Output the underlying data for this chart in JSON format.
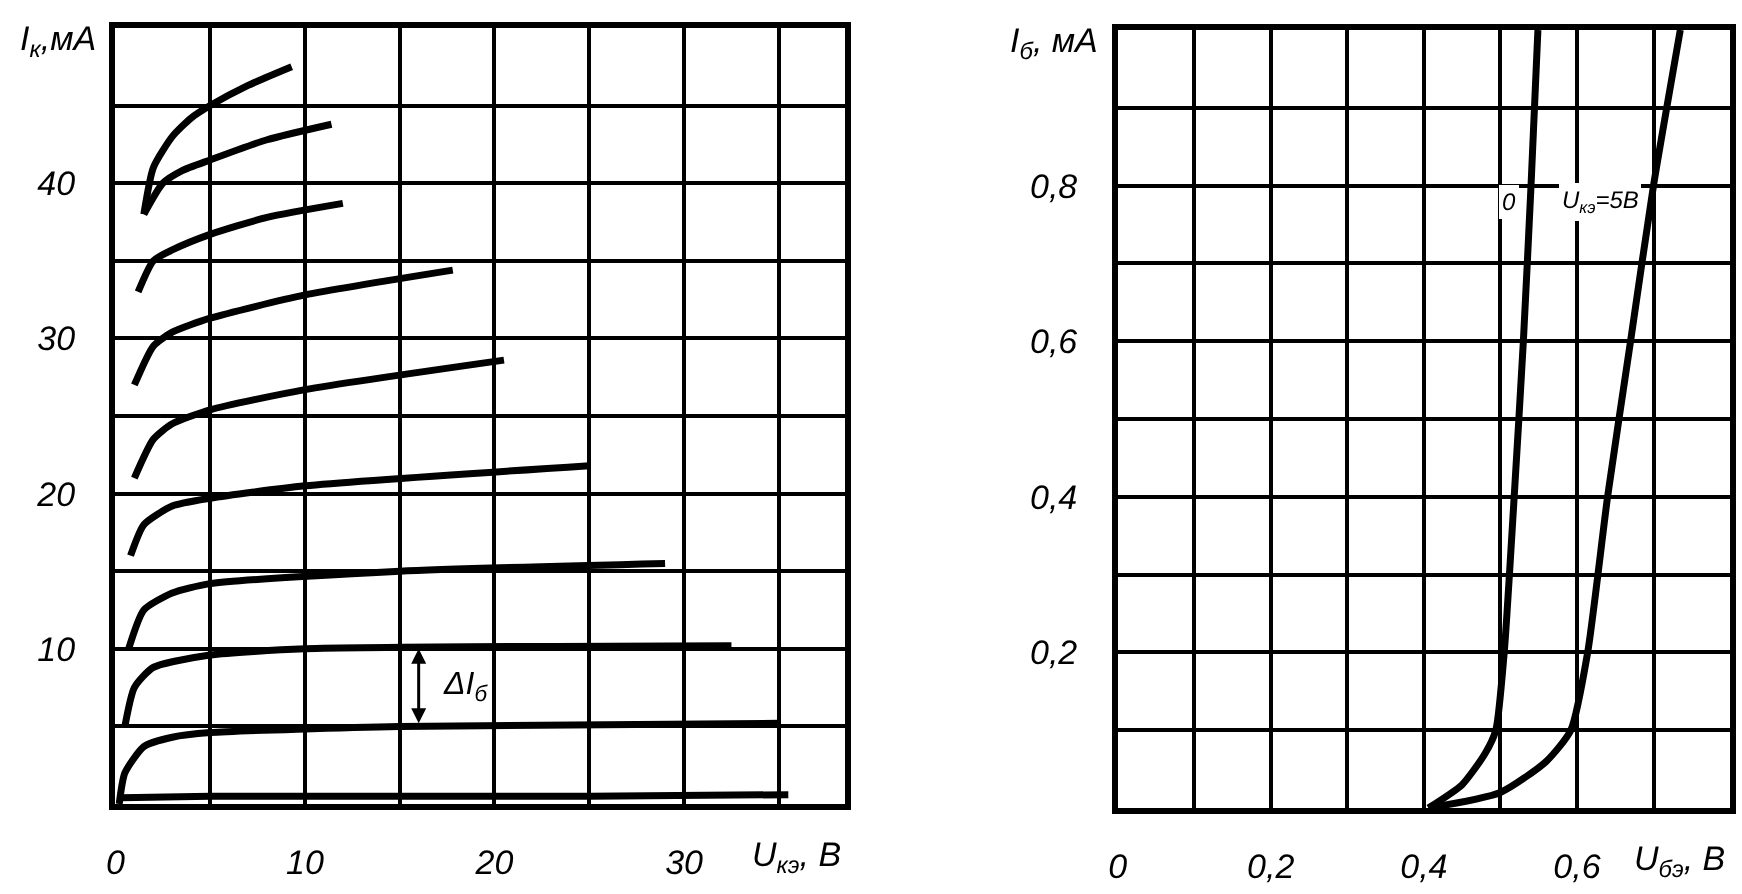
{
  "chart_data": [
    {
      "type": "line",
      "xlabel": "U$_{кэ}$, В",
      "ylabel": "I$_{к}$,мА",
      "xlim": [
        0,
        38.5
      ],
      "ylim": [
        0,
        50
      ],
      "xticks": [
        0,
        {
          "value": 5,
          "label": null
        },
        10,
        {
          "value": 15,
          "label": null
        },
        20,
        {
          "value": 25,
          "label": null
        },
        30,
        {
          "value": 35,
          "label": null
        }
      ],
      "yticks": [
        {
          "value": 0,
          "label": null
        },
        {
          "value": 5,
          "label": null
        },
        10,
        {
          "value": 15,
          "label": null
        },
        20,
        {
          "value": 25,
          "label": null
        },
        30,
        {
          "value": 35,
          "label": null
        },
        40,
        {
          "value": 45,
          "label": null
        },
        {
          "value": 50,
          "label": null
        }
      ],
      "grid": true,
      "marker": "none",
      "line_style": "solid",
      "series": [
        {
          "color": "#000000",
          "x": [
            0.3,
            5,
            15,
            25,
            35.5
          ],
          "values": [
            0.4,
            0.5,
            0.5,
            0.5,
            0.6
          ]
        },
        {
          "color": "#000000",
          "x": [
            0.2,
            0.5,
            1.5,
            3,
            5,
            15,
            35
          ],
          "values": [
            0,
            2,
            3.7,
            4.3,
            4.6,
            5,
            5.2
          ]
        },
        {
          "color": "#000000",
          "x": [
            0.5,
            1,
            2,
            5,
            10,
            32.5
          ],
          "values": [
            5,
            7.5,
            8.8,
            9.6,
            10,
            10.2
          ]
        },
        {
          "color": "#000000",
          "x": [
            0.7,
            1.5,
            3,
            5,
            15,
            29
          ],
          "values": [
            10,
            12.5,
            13.6,
            14.2,
            15,
            15.5
          ]
        },
        {
          "color": "#000000",
          "x": [
            0.8,
            1.5,
            3,
            5,
            10,
            25
          ],
          "values": [
            16,
            18,
            19.2,
            19.7,
            20.5,
            21.8
          ]
        },
        {
          "color": "#000000",
          "x": [
            1,
            2,
            3,
            5,
            10,
            20.5
          ],
          "values": [
            21,
            23.5,
            24.5,
            25.4,
            26.7,
            28.6
          ]
        },
        {
          "color": "#000000",
          "x": [
            1,
            2,
            3,
            5,
            10,
            17.8
          ],
          "values": [
            27,
            29.5,
            30.4,
            31.3,
            32.8,
            34.4
          ]
        },
        {
          "color": "#000000",
          "x": [
            1.2,
            2,
            3,
            5,
            8,
            12
          ],
          "values": [
            33,
            35,
            35.7,
            36.7,
            37.8,
            38.7
          ]
        },
        {
          "color": "#000000",
          "x": [
            1.5,
            2.5,
            3.5,
            5,
            8,
            11.4
          ],
          "values": [
            38,
            40,
            40.8,
            41.5,
            42.8,
            43.8
          ]
        },
        {
          "color": "#000000",
          "x": [
            1.5,
            2,
            3,
            4,
            5,
            7,
            9.3
          ],
          "values": [
            38,
            41,
            43,
            44.2,
            45,
            46.3,
            47.5
          ]
        }
      ],
      "annotations": [
        {
          "text": "ΔI$_{б}$",
          "x": 16,
          "y": 10
        }
      ]
    },
    {
      "type": "line",
      "xlabel": "U$_{бэ}$, В",
      "ylabel": "I$_{б}$, мА",
      "xlim": [
        0,
        0.8
      ],
      "ylim": [
        0,
        1.0
      ],
      "xticks": [
        0,
        {
          "value": 0.1,
          "label": null
        },
        {
          "value": 0.2,
          "label": "0,2"
        },
        {
          "value": 0.3,
          "label": null
        },
        {
          "value": 0.4,
          "label": "0,4"
        },
        {
          "value": 0.5,
          "label": null
        },
        {
          "value": 0.6,
          "label": "0,6"
        },
        {
          "value": 0.7,
          "label": null
        },
        {
          "value": 0.8,
          "label": null
        }
      ],
      "yticks": [
        {
          "value": 0,
          "label": null
        },
        {
          "value": 0.1,
          "label": null
        },
        {
          "value": 0.2,
          "label": "0,2"
        },
        {
          "value": 0.3,
          "label": null
        },
        {
          "value": 0.4,
          "label": "0,4"
        },
        {
          "value": 0.5,
          "label": null
        },
        {
          "value": 0.6,
          "label": "0,6"
        },
        {
          "value": 0.7,
          "label": null
        },
        {
          "value": 0.8,
          "label": "0,8"
        },
        {
          "value": 0.9,
          "label": null
        },
        {
          "value": 1.0,
          "label": null
        }
      ],
      "grid": true,
      "marker": "none",
      "line_style": "solid",
      "series": [
        {
          "color": "#000000",
          "x": [
            0.406,
            0.45,
            0.48,
            0.494,
            0.505,
            0.518,
            0.53,
            0.54,
            0.549
          ],
          "values": [
            0,
            0.03,
            0.07,
            0.1,
            0.2,
            0.4,
            0.6,
            0.8,
            1.0
          ]
        },
        {
          "color": "#000000",
          "x": [
            0.406,
            0.5,
            0.56,
            0.592,
            0.614,
            0.64,
            0.67,
            0.7,
            0.735
          ],
          "values": [
            0,
            0.02,
            0.06,
            0.1,
            0.2,
            0.4,
            0.6,
            0.8,
            1.0
          ]
        }
      ],
      "annotations": [
        {
          "text": "0",
          "x": 0.539,
          "y": 0.78
        },
        {
          "text": "U$_{кэ}$=5В",
          "x": 0.697,
          "y": 0.78
        }
      ]
    }
  ]
}
